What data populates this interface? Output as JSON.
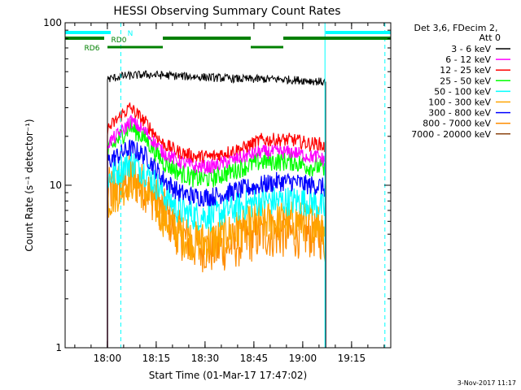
{
  "chart_data": {
    "type": "line",
    "title": "HESSI Observing Summary Count Rates",
    "xlabel": "Start Time (01-Mar-17 17:47:02)",
    "ylabel": "Count Rate (s⁻¹ detector⁻¹)",
    "yscale": "log",
    "ylim": [
      1,
      100
    ],
    "xlim_minutes_after_start": [
      0,
      100
    ],
    "x_ticks": [
      {
        "label": "18:00",
        "minute": 12.97
      },
      {
        "label": "18:15",
        "minute": 27.97
      },
      {
        "label": "18:30",
        "minute": 42.97
      },
      {
        "label": "18:45",
        "minute": 57.97
      },
      {
        "label": "19:00",
        "minute": 72.97
      },
      {
        "label": "19:15",
        "minute": 87.97
      }
    ],
    "y_ticks": [
      {
        "label": "1",
        "value": 1
      },
      {
        "label": "10",
        "value": 10
      },
      {
        "label": "100",
        "value": 100
      }
    ],
    "legend": {
      "header": [
        "Det 3,6, FDecim 2,",
        "Att 0"
      ],
      "placement": "right"
    },
    "series": [
      {
        "name": "3 - 6 keV",
        "color": "#000000",
        "keyframes": [
          [
            13,
            45
          ],
          [
            18,
            47
          ],
          [
            25,
            48
          ],
          [
            35,
            47
          ],
          [
            45,
            46
          ],
          [
            55,
            45
          ],
          [
            65,
            45
          ],
          [
            75,
            44
          ],
          [
            80,
            43
          ]
        ]
      },
      {
        "name": "6 - 12 keV",
        "color": "#ff00ff",
        "keyframes": [
          [
            13,
            18
          ],
          [
            18,
            22
          ],
          [
            20,
            25
          ],
          [
            25,
            21
          ],
          [
            30,
            16
          ],
          [
            35,
            14
          ],
          [
            40,
            13
          ],
          [
            45,
            13
          ],
          [
            50,
            14
          ],
          [
            55,
            15
          ],
          [
            60,
            16
          ],
          [
            65,
            16
          ],
          [
            70,
            16
          ],
          [
            75,
            15
          ],
          [
            78,
            15
          ],
          [
            80,
            14
          ]
        ]
      },
      {
        "name": "12 - 25 keV",
        "color": "#ff0000",
        "keyframes": [
          [
            13,
            22
          ],
          [
            18,
            28
          ],
          [
            20,
            30
          ],
          [
            25,
            24
          ],
          [
            30,
            18
          ],
          [
            35,
            16
          ],
          [
            40,
            15
          ],
          [
            45,
            15
          ],
          [
            50,
            16
          ],
          [
            55,
            17
          ],
          [
            60,
            19
          ],
          [
            65,
            19
          ],
          [
            70,
            19
          ],
          [
            75,
            18
          ],
          [
            78,
            18
          ],
          [
            80,
            17
          ]
        ]
      },
      {
        "name": "25 - 50 keV",
        "color": "#00ff00",
        "keyframes": [
          [
            13,
            16
          ],
          [
            18,
            21
          ],
          [
            20,
            23
          ],
          [
            25,
            19
          ],
          [
            30,
            14
          ],
          [
            35,
            12
          ],
          [
            40,
            11
          ],
          [
            45,
            11
          ],
          [
            50,
            12
          ],
          [
            55,
            13
          ],
          [
            60,
            14
          ],
          [
            65,
            14
          ],
          [
            70,
            14
          ],
          [
            75,
            13
          ],
          [
            78,
            13
          ],
          [
            80,
            12
          ]
        ]
      },
      {
        "name": "50 - 100 keV",
        "color": "#00ffff",
        "keyframes": [
          [
            13,
            11
          ],
          [
            18,
            13
          ],
          [
            20,
            14
          ],
          [
            25,
            12
          ],
          [
            30,
            9
          ],
          [
            35,
            7
          ],
          [
            40,
            6.5
          ],
          [
            45,
            6.5
          ],
          [
            50,
            7
          ],
          [
            55,
            7.5
          ],
          [
            60,
            8
          ],
          [
            65,
            8
          ],
          [
            70,
            8
          ],
          [
            75,
            8
          ],
          [
            78,
            7.5
          ],
          [
            80,
            7
          ]
        ]
      },
      {
        "name": "100 - 300 keV",
        "color": "#ffa500",
        "keyframes": [
          [
            13,
            8
          ],
          [
            18,
            10
          ],
          [
            20,
            11
          ],
          [
            25,
            9
          ],
          [
            30,
            6.5
          ],
          [
            35,
            5
          ],
          [
            40,
            4.5
          ],
          [
            45,
            4.5
          ],
          [
            50,
            5
          ],
          [
            55,
            5.5
          ],
          [
            60,
            6
          ],
          [
            65,
            6
          ],
          [
            70,
            6
          ],
          [
            75,
            6
          ],
          [
            78,
            6
          ],
          [
            80,
            5.5
          ]
        ]
      },
      {
        "name": "300 - 800 keV",
        "color": "#0000ff",
        "keyframes": [
          [
            13,
            14
          ],
          [
            18,
            16
          ],
          [
            20,
            17
          ],
          [
            25,
            15
          ],
          [
            30,
            11
          ],
          [
            35,
            9
          ],
          [
            40,
            8.5
          ],
          [
            45,
            8.5
          ],
          [
            50,
            9
          ],
          [
            55,
            9.5
          ],
          [
            60,
            10
          ],
          [
            65,
            10.5
          ],
          [
            70,
            10.5
          ],
          [
            75,
            10
          ],
          [
            78,
            10
          ],
          [
            80,
            9.5
          ]
        ]
      },
      {
        "name": "800 - 7000 keV",
        "color": "#ff8c00",
        "keyframes": [
          [
            13,
            9
          ],
          [
            18,
            10.5
          ],
          [
            20,
            11
          ],
          [
            25,
            9.5
          ],
          [
            30,
            7
          ],
          [
            35,
            5
          ],
          [
            40,
            4.2
          ],
          [
            45,
            4
          ],
          [
            50,
            4.2
          ],
          [
            55,
            4.5
          ],
          [
            60,
            5
          ],
          [
            65,
            5
          ],
          [
            70,
            5
          ],
          [
            75,
            5
          ],
          [
            78,
            5
          ],
          [
            80,
            4.5
          ]
        ]
      },
      {
        "name": "7000 - 20000 keV",
        "color": "#8b4513",
        "keyframes": []
      }
    ],
    "annotations": [
      {
        "label": "N",
        "color": "#00ffff",
        "segments": [
          [
            0,
            14
          ]
        ]
      },
      {
        "label": "RD0",
        "color": "#008000",
        "segments": [
          [
            0,
            12
          ],
          [
            30,
            57
          ],
          [
            67,
            100
          ]
        ]
      },
      {
        "label": "RD6",
        "color": "#008000",
        "segments": [
          [
            13,
            30
          ],
          [
            57,
            67
          ]
        ]
      },
      {
        "label": "",
        "color": "#00ffff",
        "segments": [
          [
            80,
            100
          ]
        ]
      }
    ],
    "vertical_markers": [
      {
        "minute": 0,
        "color": "#00ffff",
        "style": "solid"
      },
      {
        "minute": 17.1,
        "color": "#00ffff",
        "style": "dashed"
      },
      {
        "minute": 79.8,
        "color": "#00ffff",
        "style": "solid"
      },
      {
        "minute": 98.2,
        "color": "#00ffff",
        "style": "dashed"
      }
    ],
    "grid": false
  },
  "footer": {
    "timestamp": "3-Nov-2017 11:17"
  }
}
